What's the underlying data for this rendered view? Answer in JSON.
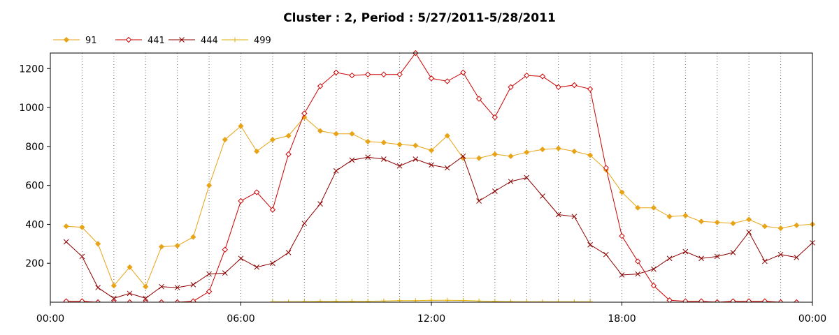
{
  "chart_data": {
    "type": "line",
    "title": "Cluster : 2, Period : 5/27/2011-5/28/2011",
    "xlabel": "",
    "ylabel": "",
    "x_ticks": [
      "00:00",
      "06:00",
      "12:00",
      "18:00",
      "00:00"
    ],
    "y_ticks": [
      200,
      400,
      600,
      800,
      1000,
      1200
    ],
    "ylim": [
      0,
      1280
    ],
    "xlim_hours": [
      0,
      24
    ],
    "grid": "vertical dotted lines every hour",
    "legend_position": "top-left",
    "series": [
      {
        "name": "91",
        "color": "#e8a317",
        "marker": "diamond",
        "x": [
          0.5,
          1.0,
          1.5,
          2.0,
          2.5,
          3.0,
          3.5,
          4.0,
          4.5,
          5.0,
          5.5,
          6.0,
          6.5,
          7.0,
          7.5,
          8.0,
          8.5,
          9.0,
          9.5,
          10.0,
          10.5,
          11.0,
          11.5,
          12.0,
          12.5,
          13.0,
          13.5,
          14.0,
          14.5,
          15.0,
          15.5,
          16.0,
          16.5,
          17.0,
          17.5,
          18.0,
          18.5,
          19.0,
          19.5,
          20.0,
          20.5,
          21.0,
          21.5,
          22.0,
          22.5,
          23.0,
          23.5,
          24.0
        ],
        "y": [
          390,
          385,
          300,
          85,
          180,
          80,
          285,
          290,
          335,
          600,
          835,
          905,
          775,
          835,
          855,
          950,
          880,
          865,
          865,
          825,
          820,
          810,
          805,
          780,
          855,
          740,
          740,
          760,
          750,
          770,
          785,
          790,
          775,
          755,
          680,
          565,
          485,
          485,
          440,
          445,
          415,
          410,
          405,
          425,
          390,
          380,
          395,
          400
        ]
      },
      {
        "name": "441",
        "color": "#cc0000",
        "marker": "diamond-open",
        "x": [
          0.5,
          1.0,
          1.5,
          2.0,
          2.5,
          3.0,
          3.5,
          4.0,
          4.5,
          5.0,
          5.5,
          6.0,
          6.5,
          7.0,
          7.5,
          8.0,
          8.5,
          9.0,
          9.5,
          10.0,
          10.5,
          11.0,
          11.5,
          12.0,
          12.5,
          13.0,
          13.5,
          14.0,
          14.5,
          15.0,
          15.5,
          16.0,
          16.5,
          17.0,
          17.5,
          18.0,
          18.5,
          19.0,
          19.5,
          20.0,
          20.5,
          21.0,
          21.5,
          22.0,
          22.5,
          23.0,
          23.5
        ],
        "y": [
          5,
          5,
          0,
          0,
          0,
          0,
          0,
          0,
          5,
          55,
          270,
          520,
          565,
          475,
          760,
          970,
          1110,
          1180,
          1165,
          1170,
          1170,
          1170,
          1280,
          1150,
          1135,
          1180,
          1045,
          950,
          1105,
          1165,
          1160,
          1105,
          1115,
          1095,
          690,
          340,
          210,
          85,
          10,
          5,
          5,
          0,
          5,
          5,
          5,
          0,
          0
        ]
      },
      {
        "name": "444",
        "color": "#8b0000",
        "marker": "x",
        "x": [
          0.5,
          1.0,
          1.5,
          2.0,
          2.5,
          3.0,
          3.5,
          4.0,
          4.5,
          5.0,
          5.5,
          6.0,
          6.5,
          7.0,
          7.5,
          8.0,
          8.5,
          9.0,
          9.5,
          10.0,
          10.5,
          11.0,
          11.5,
          12.0,
          12.5,
          13.0,
          13.5,
          14.0,
          14.5,
          15.0,
          15.5,
          16.0,
          16.5,
          17.0,
          17.5,
          18.0,
          18.5,
          19.0,
          19.5,
          20.0,
          20.5,
          21.0,
          21.5,
          22.0,
          22.5,
          23.0,
          23.5,
          24.0
        ],
        "y": [
          310,
          235,
          75,
          20,
          45,
          20,
          80,
          75,
          90,
          145,
          150,
          225,
          180,
          200,
          255,
          405,
          505,
          675,
          730,
          745,
          735,
          700,
          735,
          705,
          690,
          750,
          520,
          570,
          620,
          640,
          545,
          450,
          440,
          295,
          245,
          140,
          145,
          170,
          225,
          260,
          225,
          235,
          255,
          360,
          210,
          245,
          230,
          305
        ]
      },
      {
        "name": "499",
        "color": "#ddb000",
        "marker": "plus",
        "x": [
          7.0,
          7.5,
          8.0,
          8.5,
          9.0,
          9.5,
          10.0,
          10.5,
          11.0,
          11.5,
          12.0,
          12.5,
          13.0,
          13.5,
          14.0,
          14.5,
          15.0,
          15.5,
          16.0,
          16.5,
          17.0
        ],
        "y": [
          2,
          2,
          3,
          4,
          5,
          5,
          5,
          6,
          8,
          8,
          10,
          10,
          9,
          6,
          4,
          3,
          2,
          2,
          2,
          2,
          2
        ]
      }
    ]
  }
}
